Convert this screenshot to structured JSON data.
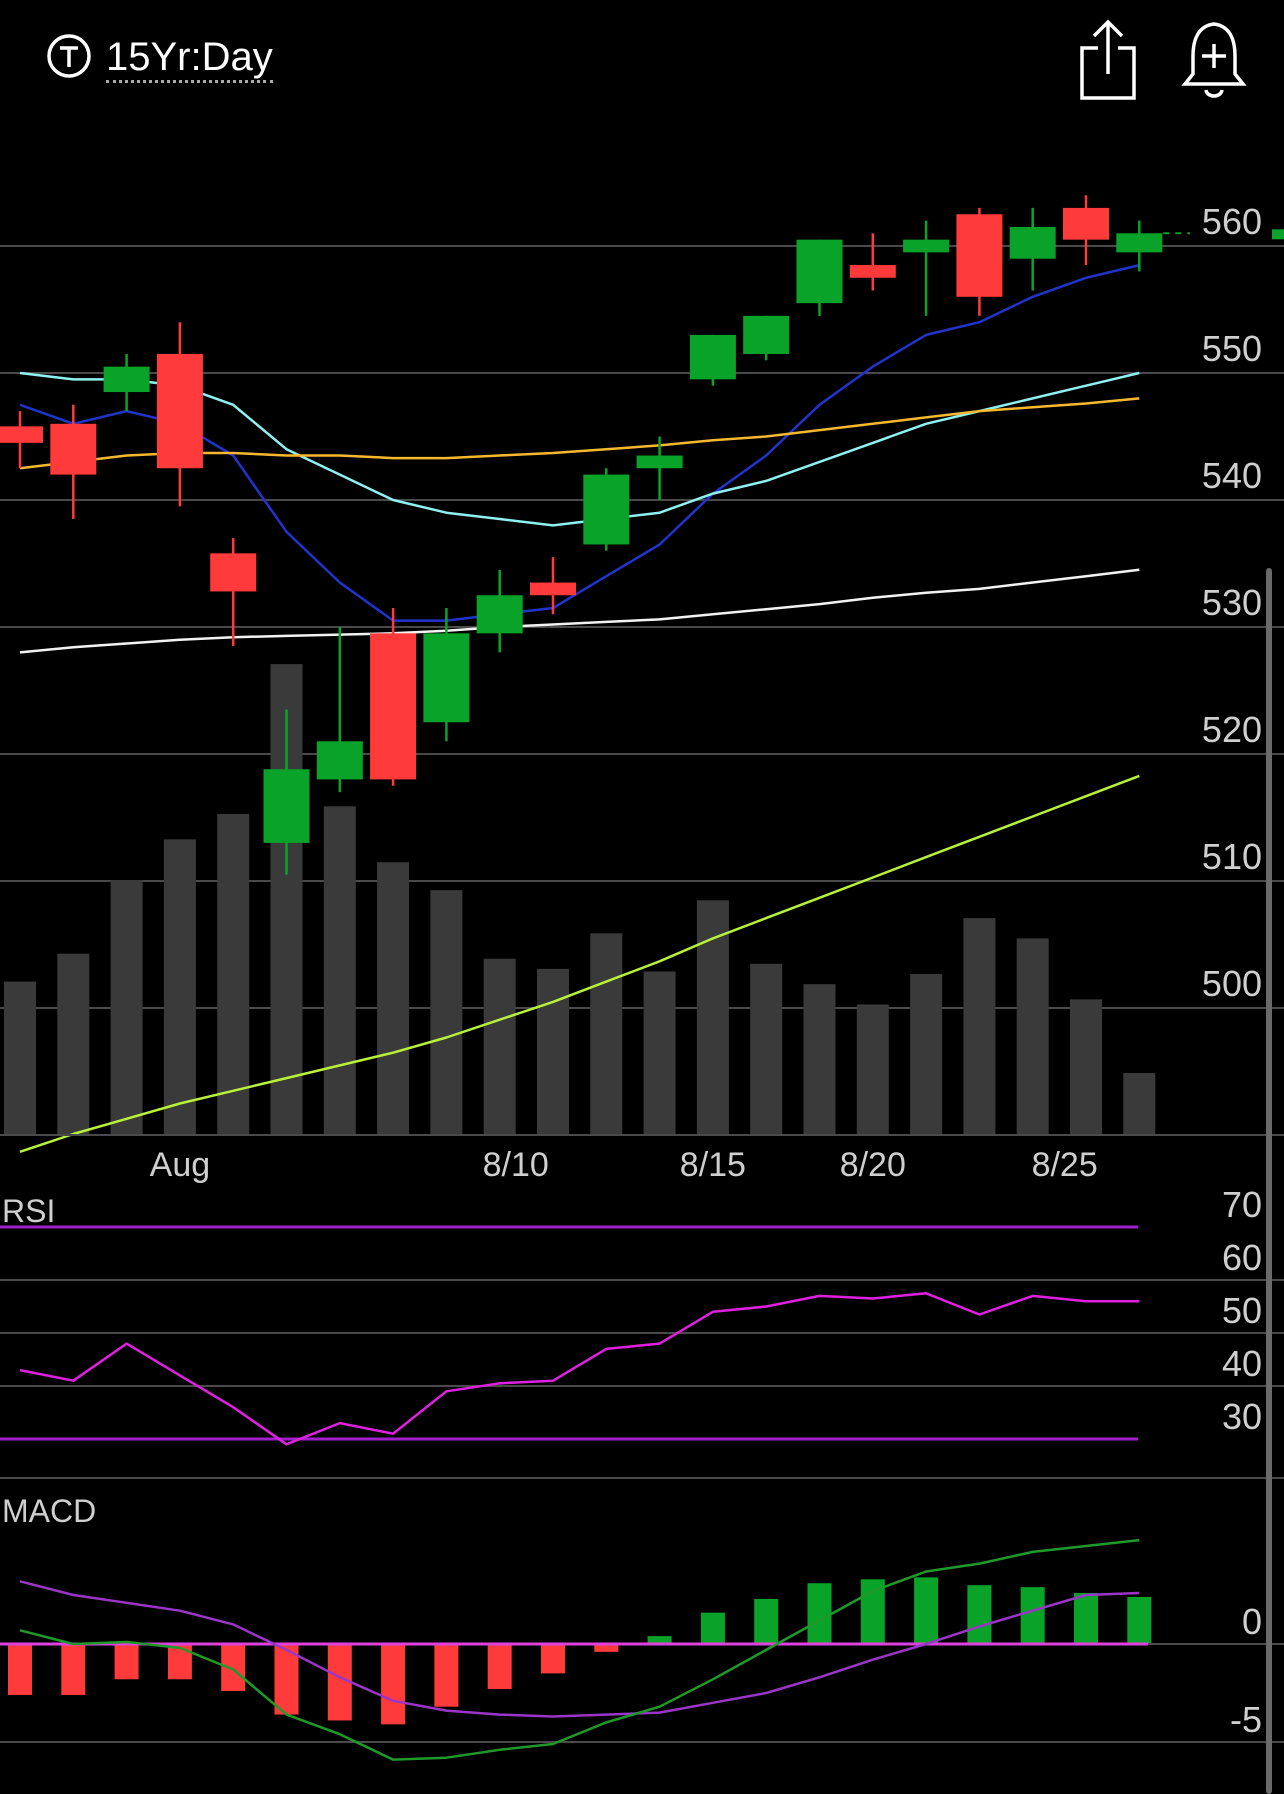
{
  "header": {
    "timeframe_label": "15Yr:Day",
    "timeframe_icon": "t-circle-icon",
    "share_icon": "share-icon",
    "alert_icon": "bell-plus-icon"
  },
  "colors": {
    "up": "#0aa32a",
    "down": "#ff3a3a",
    "volume": "#3a3a3a",
    "ma_blue": "#2233cc",
    "ma_cyan": "#8ff0f0",
    "ma_orange": "#f5b82e",
    "ma_white": "#f2f2f2",
    "vol_avg": "#b8f03a",
    "rsi_line": "#e020e0",
    "rsi_band": "#a020c8",
    "macd_line": "#1f9a2a",
    "signal_line": "#9a35c8",
    "zero_line": "#e040e0",
    "grid": "#4a4a4a",
    "axis_text": "#cfcfcf"
  },
  "chart_data": [
    {
      "type": "candlestick",
      "title": "",
      "price_ticks": [
        560,
        550,
        540,
        530,
        520,
        510,
        500
      ],
      "ylim": [
        493,
        564
      ],
      "x_tick_labels": [
        {
          "label": "Aug",
          "index": 3
        },
        {
          "label": "8/10",
          "index": 9.3
        },
        {
          "label": "8/15",
          "index": 13
        },
        {
          "label": "8/20",
          "index": 16
        },
        {
          "label": "8/25",
          "index": 19.6
        }
      ],
      "candles": [
        {
          "o": 545.8,
          "h": 547.0,
          "l": 542.5,
          "c": 544.5
        },
        {
          "o": 546.0,
          "h": 547.5,
          "l": 538.5,
          "c": 542.0
        },
        {
          "o": 548.5,
          "h": 551.5,
          "l": 547.0,
          "c": 550.5
        },
        {
          "o": 551.5,
          "h": 554.0,
          "l": 539.5,
          "c": 542.5
        },
        {
          "o": 535.8,
          "h": 537.0,
          "l": 528.5,
          "c": 532.8
        },
        {
          "o": 513.0,
          "h": 523.5,
          "l": 510.5,
          "c": 518.8
        },
        {
          "o": 518.0,
          "h": 530.0,
          "l": 517.0,
          "c": 521.0
        },
        {
          "o": 529.5,
          "h": 531.5,
          "l": 517.5,
          "c": 518.0
        },
        {
          "o": 522.5,
          "h": 531.5,
          "l": 521.0,
          "c": 529.5
        },
        {
          "o": 529.5,
          "h": 534.5,
          "l": 528.0,
          "c": 532.5
        },
        {
          "o": 533.5,
          "h": 535.5,
          "l": 531.0,
          "c": 532.5
        },
        {
          "o": 536.5,
          "h": 542.5,
          "l": 536.0,
          "c": 542.0
        },
        {
          "o": 542.5,
          "h": 545.0,
          "l": 540.0,
          "c": 543.5
        },
        {
          "o": 549.5,
          "h": 553.0,
          "l": 549.0,
          "c": 553.0
        },
        {
          "o": 551.5,
          "h": 554.5,
          "l": 551.0,
          "c": 554.5
        },
        {
          "o": 555.5,
          "h": 560.5,
          "l": 554.5,
          "c": 560.5
        },
        {
          "o": 558.5,
          "h": 561.0,
          "l": 556.5,
          "c": 557.5
        },
        {
          "o": 559.5,
          "h": 562.0,
          "l": 554.5,
          "c": 560.5
        },
        {
          "o": 562.5,
          "h": 563.0,
          "l": 554.5,
          "c": 556.0
        },
        {
          "o": 559.0,
          "h": 563.0,
          "l": 556.5,
          "c": 561.5
        },
        {
          "o": 563.0,
          "h": 564.0,
          "l": 558.5,
          "c": 560.5
        },
        {
          "o": 559.5,
          "h": 562.0,
          "l": 558.0,
          "c": 561.0
        }
      ],
      "volume_relative": [
        0.6,
        0.71,
        1.0,
        1.16,
        1.26,
        1.85,
        1.29,
        1.07,
        0.96,
        0.69,
        0.65,
        0.79,
        0.64,
        0.92,
        0.67,
        0.59,
        0.51,
        0.63,
        0.85,
        0.77,
        0.53,
        0.24
      ],
      "moving_averages": [
        {
          "color_key": "ma_blue",
          "values": [
            547.5,
            546.0,
            547.0,
            546.0,
            543.5,
            537.5,
            533.5,
            530.5,
            530.5,
            531.0,
            531.5,
            534.0,
            536.5,
            540.5,
            543.5,
            547.5,
            550.5,
            553.0,
            554.0,
            556.0,
            557.5,
            558.5
          ]
        },
        {
          "color_key": "ma_cyan",
          "values": [
            550.0,
            549.5,
            549.5,
            549.0,
            547.5,
            544.0,
            542.0,
            540.0,
            539.0,
            538.5,
            538.0,
            538.5,
            539.0,
            540.5,
            541.5,
            543.0,
            544.5,
            546.0,
            547.0,
            548.0,
            549.0,
            550.0
          ]
        },
        {
          "color_key": "ma_orange",
          "values": [
            542.5,
            543.0,
            543.5,
            543.7,
            543.7,
            543.5,
            543.5,
            543.3,
            543.3,
            543.5,
            543.7,
            544.0,
            544.3,
            544.7,
            545.0,
            545.5,
            546.0,
            546.5,
            547.0,
            547.3,
            547.6,
            548.0
          ]
        },
        {
          "color_key": "ma_white",
          "values": [
            528.0,
            528.4,
            528.7,
            529.0,
            529.2,
            529.3,
            529.4,
            529.5,
            529.7,
            530.0,
            530.2,
            530.4,
            530.6,
            531.0,
            531.4,
            531.8,
            532.3,
            532.7,
            533.0,
            533.5,
            534.0,
            534.5
          ]
        },
        {
          "color_key": "vol_avg",
          "values": [
            -0.07,
            0.0,
            0.06,
            0.12,
            0.17,
            0.22,
            0.27,
            0.32,
            0.38,
            0.45,
            0.52,
            0.6,
            0.68,
            0.77,
            0.85,
            0.93,
            1.01,
            1.09,
            1.17,
            1.25,
            1.33,
            1.41
          ],
          "scale": "volume"
        }
      ],
      "last_price_marker": true
    },
    {
      "type": "line",
      "title": "RSI",
      "ylim": [
        26,
        72
      ],
      "y_ticks": [
        70,
        60,
        50,
        40,
        30
      ],
      "bands": [
        70,
        30
      ],
      "values": [
        43,
        41,
        48,
        42,
        36,
        29,
        33,
        31,
        39,
        40.5,
        41,
        47,
        48,
        54,
        55,
        57,
        56.5,
        57.5,
        53.5,
        57,
        56,
        56
      ]
    },
    {
      "type": "bar+line",
      "title": "MACD",
      "ylim": [
        -8,
        8
      ],
      "y_ticks": [
        0,
        -5
      ],
      "histogram": [
        -2.6,
        -2.6,
        -1.8,
        -1.8,
        -2.4,
        -3.6,
        -3.9,
        -4.1,
        -3.2,
        -2.3,
        -1.5,
        -0.4,
        0.4,
        1.6,
        2.3,
        3.1,
        3.3,
        3.4,
        3.0,
        2.9,
        2.6,
        2.4
      ],
      "macd": [
        0.7,
        0.0,
        0.1,
        -0.2,
        -1.3,
        -3.6,
        -4.6,
        -5.9,
        -5.8,
        -5.4,
        -5.1,
        -4.0,
        -3.2,
        -1.8,
        -0.3,
        1.2,
        2.7,
        3.7,
        4.1,
        4.7,
        5.0,
        5.3
      ],
      "signal": [
        3.2,
        2.5,
        2.1,
        1.7,
        1.0,
        -0.3,
        -1.7,
        -2.9,
        -3.4,
        -3.6,
        -3.7,
        -3.6,
        -3.5,
        -3.0,
        -2.5,
        -1.7,
        -0.8,
        0.0,
        0.9,
        1.7,
        2.5,
        2.6
      ]
    }
  ]
}
